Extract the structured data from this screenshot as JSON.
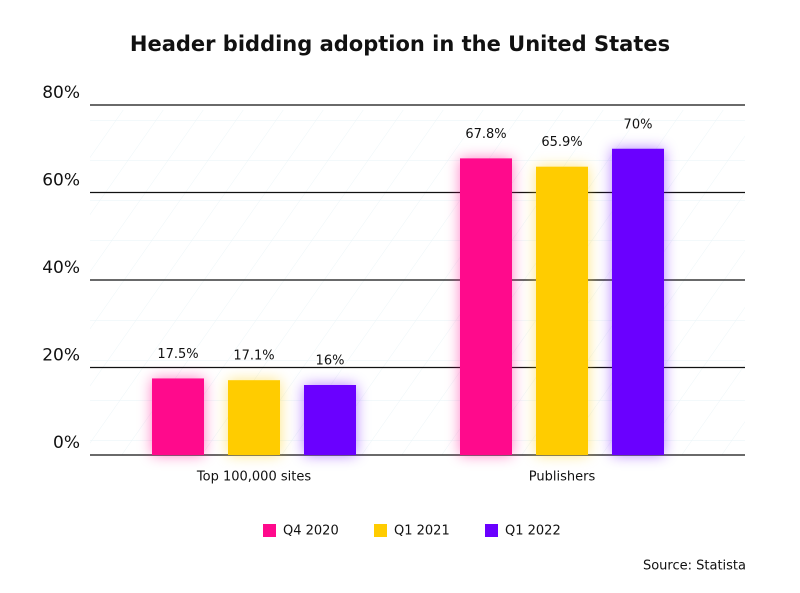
{
  "chart_data": {
    "type": "bar",
    "title": "Header bidding adoption in the United States",
    "categories": [
      "Top 100,000 sites",
      "Publishers"
    ],
    "series": [
      {
        "name": "Q4 2020",
        "color": "#ff0a8c",
        "values": [
          17.5,
          67.8
        ],
        "value_labels": [
          "17.5%",
          "67.8%"
        ]
      },
      {
        "name": "Q1 2021",
        "color": "#ffcc00",
        "values": [
          17.1,
          65.9
        ],
        "value_labels": [
          "17.1%",
          "65.9%"
        ]
      },
      {
        "name": "Q1 2022",
        "color": "#6a00ff",
        "values": [
          16,
          70
        ],
        "value_labels": [
          "16%",
          "70%"
        ]
      }
    ],
    "ylim": [
      0,
      80
    ],
    "yticks": [
      {
        "value": 0,
        "label": "0%"
      },
      {
        "value": 20,
        "label": "20%"
      },
      {
        "value": 40,
        "label": "40%"
      },
      {
        "value": 60,
        "label": "60%"
      },
      {
        "value": 80,
        "label": "80%"
      }
    ],
    "grid": true,
    "legend": "bottom",
    "source": "Source: Statista"
  }
}
